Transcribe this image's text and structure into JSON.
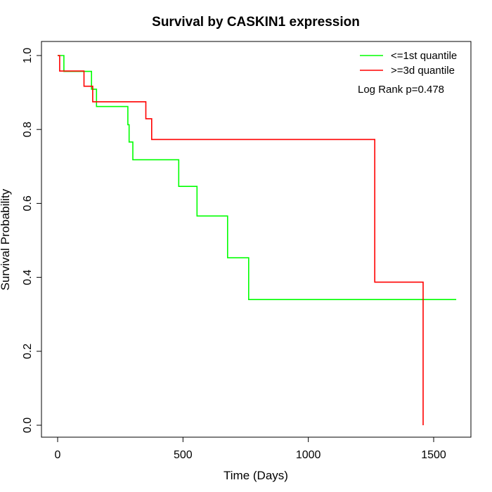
{
  "chart_data": {
    "type": "line",
    "title": "Survival by CASKIN1 expression",
    "xlabel": "Time (Days)",
    "ylabel": "Survival Probability",
    "xlim": [
      0,
      1600
    ],
    "ylim": [
      0,
      1.0
    ],
    "x_ticks": [
      0,
      500,
      1000,
      1500
    ],
    "x_tick_labels": [
      "0",
      "500",
      "1000",
      "1500"
    ],
    "y_ticks": [
      0.0,
      0.2,
      0.4,
      0.6,
      0.8,
      1.0
    ],
    "y_tick_labels": [
      "0.0",
      "0.2",
      "0.4",
      "0.6",
      "0.8",
      "1.0"
    ],
    "grid": false,
    "legend_position": "top-right",
    "annotation": "Log Rank p=0.478",
    "series": [
      {
        "name": "<=1st quantile",
        "color": "#00ff00",
        "step": true,
        "points": [
          [
            0,
            1.0
          ],
          [
            25,
            1.0
          ],
          [
            25,
            0.957
          ],
          [
            135,
            0.957
          ],
          [
            135,
            0.909
          ],
          [
            155,
            0.909
          ],
          [
            155,
            0.862
          ],
          [
            280,
            0.862
          ],
          [
            280,
            0.813
          ],
          [
            285,
            0.813
          ],
          [
            285,
            0.766
          ],
          [
            300,
            0.766
          ],
          [
            300,
            0.718
          ],
          [
            483,
            0.718
          ],
          [
            483,
            0.646
          ],
          [
            556,
            0.646
          ],
          [
            556,
            0.566
          ],
          [
            678,
            0.566
          ],
          [
            678,
            0.453
          ],
          [
            762,
            0.453
          ],
          [
            762,
            0.34
          ],
          [
            1590,
            0.34
          ]
        ]
      },
      {
        "name": ">=3d quantile",
        "color": "#ff0000",
        "step": true,
        "points": [
          [
            0,
            1.0
          ],
          [
            8,
            1.0
          ],
          [
            8,
            0.958
          ],
          [
            105,
            0.958
          ],
          [
            105,
            0.917
          ],
          [
            140,
            0.917
          ],
          [
            140,
            0.875
          ],
          [
            352,
            0.875
          ],
          [
            352,
            0.829
          ],
          [
            375,
            0.829
          ],
          [
            375,
            0.773
          ],
          [
            1265,
            0.773
          ],
          [
            1265,
            0.387
          ],
          [
            1458,
            0.387
          ],
          [
            1458,
            0.0
          ]
        ]
      }
    ]
  }
}
